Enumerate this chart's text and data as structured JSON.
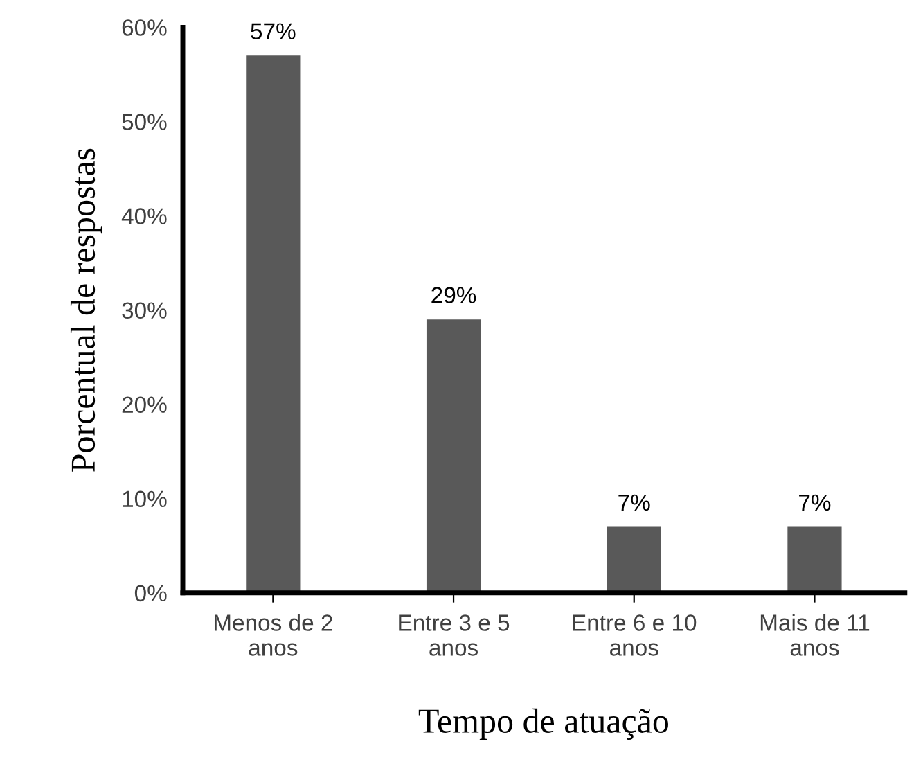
{
  "chart_data": {
    "type": "bar",
    "xlabel": "Tempo de atuação",
    "ylabel": "Porcentual de respostas",
    "categories": [
      "Menos de 2\nanos",
      "Entre 3 e 5\nanos",
      "Entre 6 e 10\nanos",
      "Mais de 11\nanos"
    ],
    "values": [
      57,
      29,
      7,
      7
    ],
    "value_labels": [
      "57%",
      "29%",
      "7%",
      "7%"
    ],
    "color": "#595959",
    "ylim": [
      0,
      60
    ],
    "yticks": [
      {
        "value": 0,
        "label": "0%"
      },
      {
        "value": 10,
        "label": "10%"
      },
      {
        "value": 20,
        "label": "20%"
      },
      {
        "value": 30,
        "label": "30%"
      },
      {
        "value": 40,
        "label": "40%"
      },
      {
        "value": 50,
        "label": "50%"
      },
      {
        "value": 60,
        "label": "60%"
      }
    ],
    "grid": false,
    "legend": false
  }
}
